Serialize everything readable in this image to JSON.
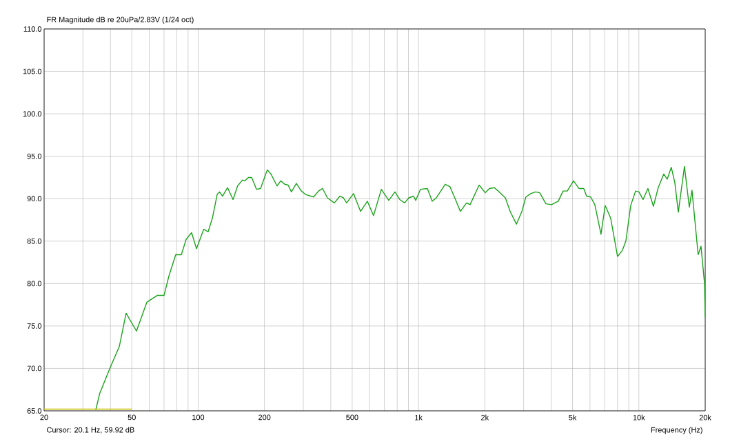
{
  "chart_data": {
    "type": "line",
    "title": "FR Magnitude dB re 20uPa/2.83V (1/24 oct)",
    "xlabel": "Frequency (Hz)",
    "annotations": [
      "Cursor: 20.1 Hz, 59.92 dB"
    ],
    "log": "x",
    "grid": true,
    "xlim": [
      20,
      20000
    ],
    "ylim": [
      65,
      110
    ],
    "xticks": [
      20,
      {
        "value": 30,
        "label": null
      },
      {
        "value": 40,
        "label": null
      },
      50,
      {
        "value": 60,
        "label": null
      },
      {
        "value": 70,
        "label": null
      },
      {
        "value": 80,
        "label": null
      },
      {
        "value": 90,
        "label": null
      },
      100,
      200,
      {
        "value": 300,
        "label": null
      },
      {
        "value": 400,
        "label": null
      },
      500,
      {
        "value": 600,
        "label": null
      },
      {
        "value": 700,
        "label": null
      },
      {
        "value": 800,
        "label": null
      },
      {
        "value": 900,
        "label": null
      },
      {
        "value": 1000,
        "label": "1k"
      },
      {
        "value": 2000,
        "label": "2k"
      },
      {
        "value": 3000,
        "label": null
      },
      {
        "value": 4000,
        "label": null
      },
      {
        "value": 5000,
        "label": "5k"
      },
      {
        "value": 6000,
        "label": null
      },
      {
        "value": 7000,
        "label": null
      },
      {
        "value": 8000,
        "label": null
      },
      {
        "value": 9000,
        "label": null
      },
      {
        "value": 10000,
        "label": "10k"
      },
      {
        "value": 20000,
        "label": "20k"
      }
    ],
    "yticks": [
      {
        "value": 65,
        "label": "65.0"
      },
      {
        "value": 70,
        "label": "70.0"
      },
      {
        "value": 75,
        "label": "75.0"
      },
      {
        "value": 80,
        "label": "80.0"
      },
      {
        "value": 85,
        "label": "85.0"
      },
      {
        "value": 90,
        "label": "90.0"
      },
      {
        "value": 95,
        "label": "95.0"
      },
      {
        "value": 100,
        "label": "100.0"
      },
      {
        "value": 105,
        "label": "105.0"
      },
      {
        "value": 110,
        "label": "110.0"
      }
    ],
    "series": [
      {
        "color": "#1aa31a",
        "x": [
          34.3,
          35.8,
          39.9,
          43.9,
          47.1,
          52.5,
          58.5,
          65.2,
          70.0,
          73.7,
          79.1,
          83.9,
          88.2,
          93.4,
          98.3,
          106,
          111,
          116,
          122,
          125,
          129,
          136,
          144,
          151,
          159,
          163,
          169,
          175,
          184,
          192,
          206,
          214,
          228,
          237,
          247,
          256,
          265,
          279,
          294,
          307,
          334,
          352,
          367,
          386,
          415,
          440,
          456,
          472,
          507,
          546,
          586,
          625,
          678,
          733,
          782,
          822,
          865,
          904,
          949,
          971,
          1020,
          1097,
          1154,
          1205,
          1322,
          1390,
          1483,
          1549,
          1652,
          1714,
          1884,
          2009,
          2099,
          2208,
          2301,
          2478,
          2606,
          2781,
          2945,
          3071,
          3230,
          3396,
          3548,
          3786,
          4012,
          4308,
          4530,
          4732,
          5050,
          5348,
          5624,
          5790,
          6040,
          6312,
          6731,
          7032,
          7449,
          8000,
          8414,
          8730,
          9183,
          9662,
          10008,
          10448,
          10990,
          11640,
          12240,
          12970,
          13450,
          14030,
          14560,
          15100,
          16100,
          16940,
          17420,
          18580,
          19140,
          19860,
          20000
        ],
        "values": [
          65.1,
          67.1,
          70.1,
          72.6,
          76.5,
          74.4,
          77.8,
          78.6,
          78.6,
          80.9,
          83.4,
          83.4,
          85.2,
          86.0,
          84.1,
          86.4,
          86.1,
          87.7,
          90.5,
          90.8,
          90.3,
          91.3,
          89.9,
          91.5,
          92.2,
          92.1,
          92.5,
          92.5,
          91.1,
          91.2,
          93.4,
          92.9,
          91.5,
          92.1,
          91.7,
          91.6,
          90.8,
          91.8,
          90.9,
          90.5,
          90.2,
          90.9,
          91.2,
          90.1,
          89.5,
          90.3,
          90.1,
          89.5,
          90.6,
          88.5,
          89.7,
          88.0,
          91.1,
          89.8,
          90.8,
          89.9,
          89.5,
          90.1,
          90.3,
          89.8,
          91.1,
          91.2,
          89.7,
          90.1,
          91.7,
          91.4,
          89.7,
          88.5,
          89.5,
          89.3,
          91.6,
          90.7,
          91.2,
          91.3,
          90.9,
          90.1,
          88.5,
          87.0,
          88.5,
          90.2,
          90.6,
          90.8,
          90.7,
          89.4,
          89.3,
          89.7,
          90.9,
          90.9,
          92.1,
          91.2,
          91.2,
          90.3,
          90.2,
          89.3,
          85.8,
          89.2,
          87.7,
          83.2,
          83.9,
          85.0,
          89.2,
          90.9,
          90.8,
          89.9,
          91.2,
          89.1,
          91.3,
          92.9,
          92.3,
          93.7,
          91.9,
          88.4,
          93.8,
          89.0,
          91.0,
          83.4,
          84.4,
          80.0,
          76.0
        ]
      },
      {
        "color": "#c8c000",
        "x": [
          20,
          50
        ],
        "values": [
          65.2,
          65.2
        ]
      }
    ]
  }
}
